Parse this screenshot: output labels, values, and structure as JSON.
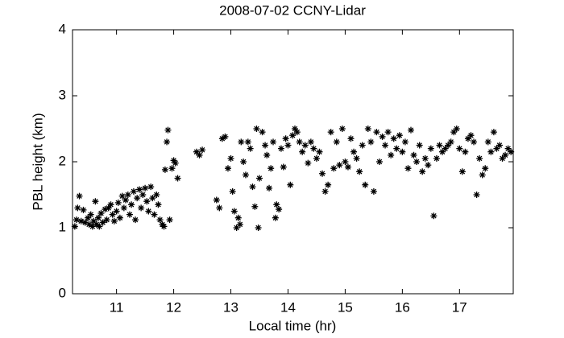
{
  "chart_data": {
    "type": "scatter",
    "title": "2008-07-02 CCNY-Lidar",
    "x_label": "Local time (hr)",
    "y_label": "PBL height (km)",
    "xlim": [
      10.23,
      17.94
    ],
    "ylim": [
      0,
      4
    ],
    "xticks": [
      11,
      12,
      13,
      14,
      15,
      16,
      17
    ],
    "yticks": [
      0,
      1,
      2,
      3,
      4
    ],
    "grid": false,
    "x": [
      10.27,
      10.3,
      10.32,
      10.35,
      10.38,
      10.42,
      10.45,
      10.5,
      10.52,
      10.55,
      10.58,
      10.6,
      10.63,
      10.65,
      10.68,
      10.7,
      10.73,
      10.76,
      10.8,
      10.83,
      10.86,
      10.9,
      10.93,
      10.96,
      11.0,
      11.03,
      11.06,
      11.1,
      11.13,
      11.16,
      11.2,
      11.23,
      11.26,
      11.3,
      11.33,
      11.36,
      11.4,
      11.43,
      11.46,
      11.5,
      11.53,
      11.56,
      11.6,
      11.63,
      11.66,
      11.7,
      11.73,
      11.76,
      11.8,
      11.83,
      11.85,
      11.88,
      11.9,
      11.93,
      11.97,
      12.0,
      12.03,
      12.07,
      12.4,
      12.45,
      12.5,
      12.75,
      12.8,
      12.85,
      12.9,
      12.95,
      13.0,
      13.03,
      13.06,
      13.1,
      13.13,
      13.16,
      13.18,
      13.22,
      13.26,
      13.3,
      13.34,
      13.38,
      13.42,
      13.45,
      13.48,
      13.5,
      13.55,
      13.6,
      13.63,
      13.67,
      13.7,
      13.74,
      13.78,
      13.8,
      13.84,
      13.88,
      13.92,
      13.96,
      14.0,
      14.04,
      14.08,
      14.12,
      14.16,
      14.2,
      14.25,
      14.3,
      14.35,
      14.4,
      14.45,
      14.5,
      14.55,
      14.6,
      14.65,
      14.7,
      14.75,
      14.8,
      14.85,
      14.9,
      14.95,
      15.0,
      15.05,
      15.1,
      15.15,
      15.2,
      15.25,
      15.3,
      15.35,
      15.4,
      15.45,
      15.5,
      15.55,
      15.6,
      15.65,
      15.7,
      15.75,
      15.8,
      15.85,
      15.9,
      15.95,
      16.0,
      16.05,
      16.1,
      16.15,
      16.2,
      16.25,
      16.3,
      16.35,
      16.4,
      16.45,
      16.5,
      16.55,
      16.6,
      16.65,
      16.7,
      16.75,
      16.8,
      16.85,
      16.9,
      16.95,
      17.0,
      17.05,
      17.1,
      17.15,
      17.2,
      17.25,
      17.3,
      17.35,
      17.4,
      17.45,
      17.5,
      17.55,
      17.6,
      17.65,
      17.7,
      17.75,
      17.8,
      17.85,
      17.9
    ],
    "series": [
      {
        "color": "#000000",
        "values": [
          1.02,
          1.12,
          1.3,
          1.48,
          1.1,
          1.27,
          1.08,
          1.15,
          1.05,
          1.2,
          1.02,
          1.1,
          1.4,
          1.05,
          1.15,
          1.02,
          1.22,
          1.08,
          1.28,
          1.12,
          1.3,
          1.35,
          1.2,
          1.1,
          1.25,
          1.38,
          1.15,
          1.48,
          1.3,
          1.42,
          1.5,
          1.2,
          1.35,
          1.55,
          1.12,
          1.45,
          1.58,
          1.3,
          1.5,
          1.6,
          1.4,
          1.25,
          1.62,
          1.45,
          1.2,
          1.5,
          1.35,
          1.12,
          1.05,
          1.02,
          1.88,
          2.3,
          2.48,
          1.12,
          1.9,
          2.02,
          1.98,
          1.75,
          2.15,
          2.1,
          2.18,
          1.42,
          1.3,
          2.35,
          2.38,
          1.9,
          2.05,
          1.55,
          1.25,
          1.0,
          1.15,
          1.05,
          2.3,
          2.0,
          1.8,
          2.3,
          2.2,
          1.62,
          1.32,
          2.5,
          1.0,
          1.75,
          2.45,
          2.25,
          2.1,
          1.6,
          1.9,
          2.3,
          1.15,
          1.35,
          1.28,
          2.2,
          1.92,
          2.35,
          2.25,
          1.65,
          2.4,
          2.5,
          2.45,
          2.3,
          2.15,
          2.25,
          1.98,
          2.3,
          2.2,
          2.05,
          2.15,
          1.82,
          1.55,
          1.65,
          2.45,
          1.9,
          2.3,
          1.95,
          2.5,
          2.0,
          1.92,
          2.35,
          2.15,
          2.05,
          1.85,
          2.25,
          1.65,
          2.5,
          2.3,
          1.55,
          2.45,
          2.0,
          2.38,
          2.25,
          2.45,
          2.1,
          2.35,
          2.2,
          2.4,
          2.15,
          2.3,
          1.9,
          2.48,
          2.1,
          2.0,
          2.25,
          1.85,
          2.05,
          1.95,
          2.2,
          1.18,
          2.05,
          2.25,
          2.15,
          2.2,
          2.25,
          2.3,
          2.45,
          2.5,
          2.2,
          1.85,
          2.15,
          2.35,
          2.4,
          2.3,
          1.5,
          2.05,
          1.8,
          1.9,
          2.3,
          2.15,
          2.45,
          2.2,
          2.25,
          2.05,
          2.1,
          2.2,
          2.15
        ]
      }
    ]
  }
}
